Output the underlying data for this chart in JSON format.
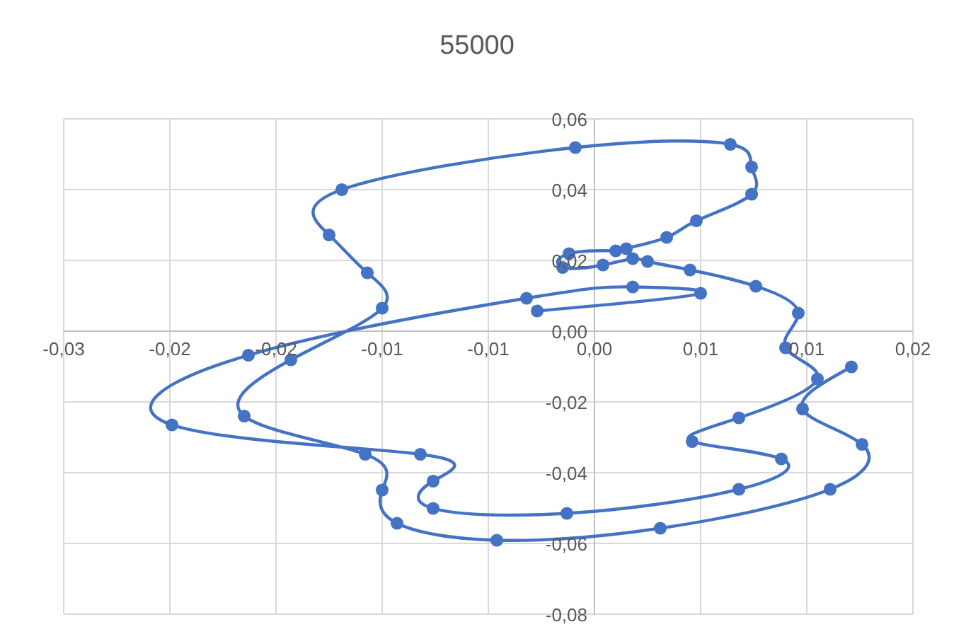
{
  "chart_data": {
    "type": "line",
    "title": "55000",
    "x": [
      -0.0027,
      0.005,
      0.0018,
      -0.0032,
      -0.0163,
      -0.0199,
      -0.0082,
      -0.0076,
      -0.0076,
      -0.0013,
      0.0068,
      0.0088,
      0.0046,
      0.0068,
      0.0105,
      0.009,
      0.0096,
      0.0076,
      0.0045,
      0.0025,
      0.0018,
      0.0004,
      -0.0015,
      -0.0012,
      0.001,
      0.0015,
      0.0034,
      0.0048,
      0.0074,
      0.0074,
      0.0064,
      -0.0009,
      -0.0119,
      -0.0125,
      -0.0107,
      -0.01,
      -0.0143,
      -0.0165,
      -0.0108,
      -0.01,
      -0.0093,
      -0.0046,
      0.0031,
      0.0111,
      0.0126,
      0.0098,
      0.0121
    ],
    "series": [
      {
        "color": "#4472c4",
        "values": [
          0.0057,
          0.0107,
          0.0125,
          0.0093,
          -0.0068,
          -0.0265,
          -0.0348,
          -0.0424,
          -0.0501,
          -0.0515,
          -0.0447,
          -0.0361,
          -0.0312,
          -0.0245,
          -0.0135,
          -0.0047,
          0.0051,
          0.0127,
          0.0173,
          0.0197,
          0.0205,
          0.0187,
          0.018,
          0.0219,
          0.0227,
          0.0233,
          0.0265,
          0.0312,
          0.0387,
          0.0464,
          0.0528,
          0.0519,
          0.04,
          0.0272,
          0.0165,
          0.0065,
          -0.0081,
          -0.024,
          -0.0348,
          -0.0449,
          -0.0543,
          -0.0591,
          -0.0557,
          -0.0447,
          -0.032,
          -0.022,
          -0.0101
        ]
      }
    ],
    "xlim": [
      -0.025,
      0.015
    ],
    "xticks": [
      {
        "value": -0.025,
        "label": "-0,03"
      },
      {
        "value": -0.02,
        "label": "-0,02"
      },
      {
        "value": -0.015,
        "label": "-0,02"
      },
      {
        "value": -0.01,
        "label": "-0,01"
      },
      {
        "value": -0.005,
        "label": "-0,01"
      },
      {
        "value": 0,
        "label": "0,00"
      },
      {
        "value": 0.005,
        "label": "0,01"
      },
      {
        "value": 0.01,
        "label": "0,01"
      },
      {
        "value": 0.015,
        "label": "0,02"
      }
    ],
    "ylim": [
      -0.08,
      0.06
    ],
    "yticks": [
      {
        "value": -0.08,
        "label": "-0,08"
      },
      {
        "value": -0.06,
        "label": "-0,06"
      },
      {
        "value": -0.04,
        "label": "-0,04"
      },
      {
        "value": -0.02,
        "label": "-0,02"
      },
      {
        "value": 0,
        "label": "0,00"
      },
      {
        "value": 0.02,
        "label": "0,02"
      },
      {
        "value": 0.04,
        "label": "0,04"
      },
      {
        "value": 0.06,
        "label": "0,06"
      }
    ],
    "grid": true,
    "marker": "circle",
    "line_style": "solid"
  }
}
